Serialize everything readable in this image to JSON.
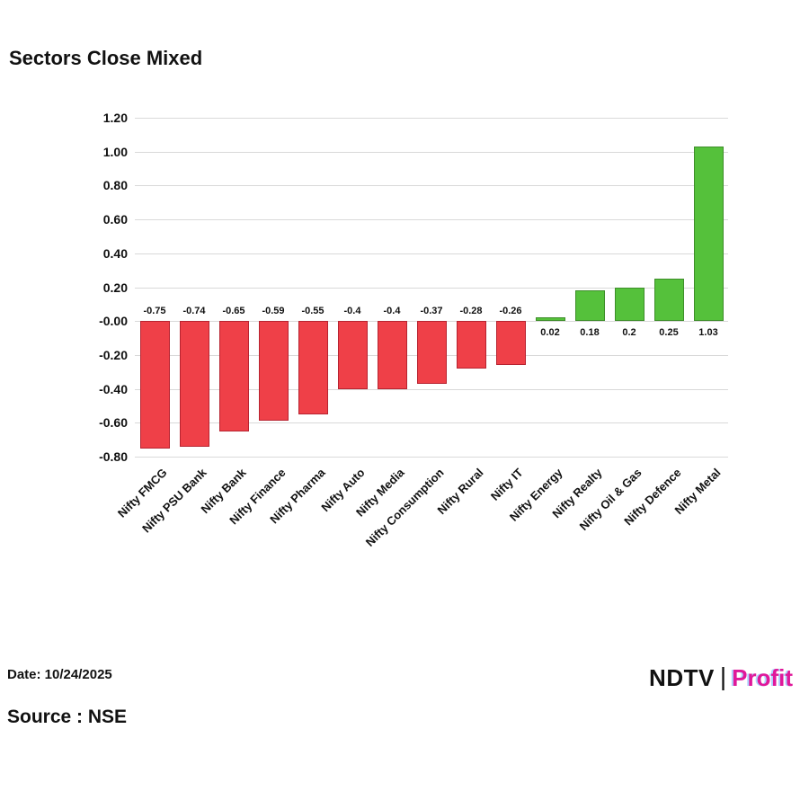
{
  "title": "Sectors Close Mixed",
  "footer": {
    "date": "Date: 10/24/2025",
    "source": "Source : NSE"
  },
  "logo": {
    "ndtv": "NDTV",
    "divider": "|",
    "profit": "Profit"
  },
  "colors": {
    "positive": "#55c13b",
    "negative": "#ef4048",
    "grid": "#d9d9d9",
    "text": "#111111"
  },
  "chart_data": {
    "type": "bar",
    "title": "Sectors Close Mixed",
    "categories": [
      "Nifty FMCG",
      "Nifty PSU Bank",
      "Nifty Bank",
      "Nifty Finance",
      "Nifty Pharma",
      "Nifty Auto",
      "Nifty Media",
      "Nifty Consumption",
      "Nifty Rural",
      "Nifty IT",
      "Nifty Energy",
      "Nifty Realty",
      "Nifty Oil & Gas",
      "Nifty Defence",
      "Nifty Metal"
    ],
    "values": [
      -0.75,
      -0.74,
      -0.65,
      -0.59,
      -0.55,
      -0.4,
      -0.4,
      -0.37,
      -0.28,
      -0.26,
      0.02,
      0.18,
      0.2,
      0.25,
      1.03
    ],
    "value_labels": [
      "-0.75",
      "-0.74",
      "-0.65",
      "-0.59",
      "-0.55",
      "-0.4",
      "-0.4",
      "-0.37",
      "-0.28",
      "-0.26",
      "0.02",
      "0.18",
      "0.2",
      "0.25",
      "1.03"
    ],
    "y_ticks": [
      "1.20",
      "1.00",
      "0.80",
      "0.60",
      "0.40",
      "0.20",
      "-0.00",
      "-0.20",
      "-0.40",
      "-0.60",
      "-0.80"
    ],
    "ylim": [
      -0.8,
      1.2
    ],
    "grid": true,
    "legend": "none",
    "xlabel": "",
    "ylabel": ""
  }
}
